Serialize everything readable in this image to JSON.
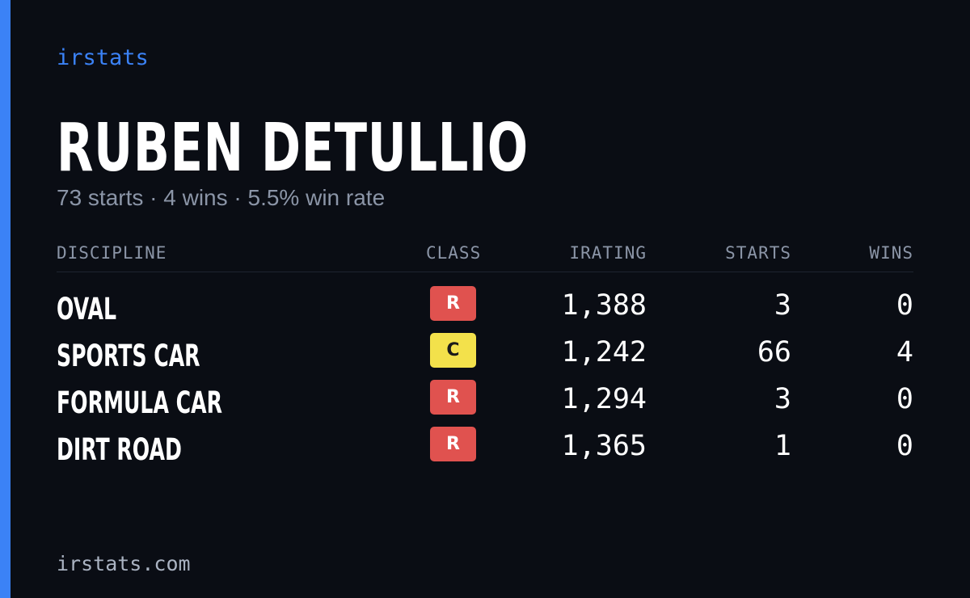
{
  "colors": {
    "background": "#0a0d14",
    "accent": "#3b82f6",
    "muted_text": "#8b95a7",
    "class_r": "#e0524f",
    "class_c": "#f3e14b"
  },
  "brand": "irstats",
  "player": {
    "name": "RUBEN DETULLIO",
    "summary": "73 starts · 4 wins · 5.5% win rate"
  },
  "table": {
    "headers": {
      "discipline": "DISCIPLINE",
      "class": "CLASS",
      "irating": "IRATING",
      "starts": "STARTS",
      "wins": "WINS"
    },
    "rows": [
      {
        "discipline": "OVAL",
        "class": "R",
        "irating": "1,388",
        "starts": "3",
        "wins": "0"
      },
      {
        "discipline": "SPORTS CAR",
        "class": "C",
        "irating": "1,242",
        "starts": "66",
        "wins": "4"
      },
      {
        "discipline": "FORMULA CAR",
        "class": "R",
        "irating": "1,294",
        "starts": "3",
        "wins": "0"
      },
      {
        "discipline": "DIRT ROAD",
        "class": "R",
        "irating": "1,365",
        "starts": "1",
        "wins": "0"
      }
    ]
  },
  "footer": {
    "url": "irstats.com"
  }
}
